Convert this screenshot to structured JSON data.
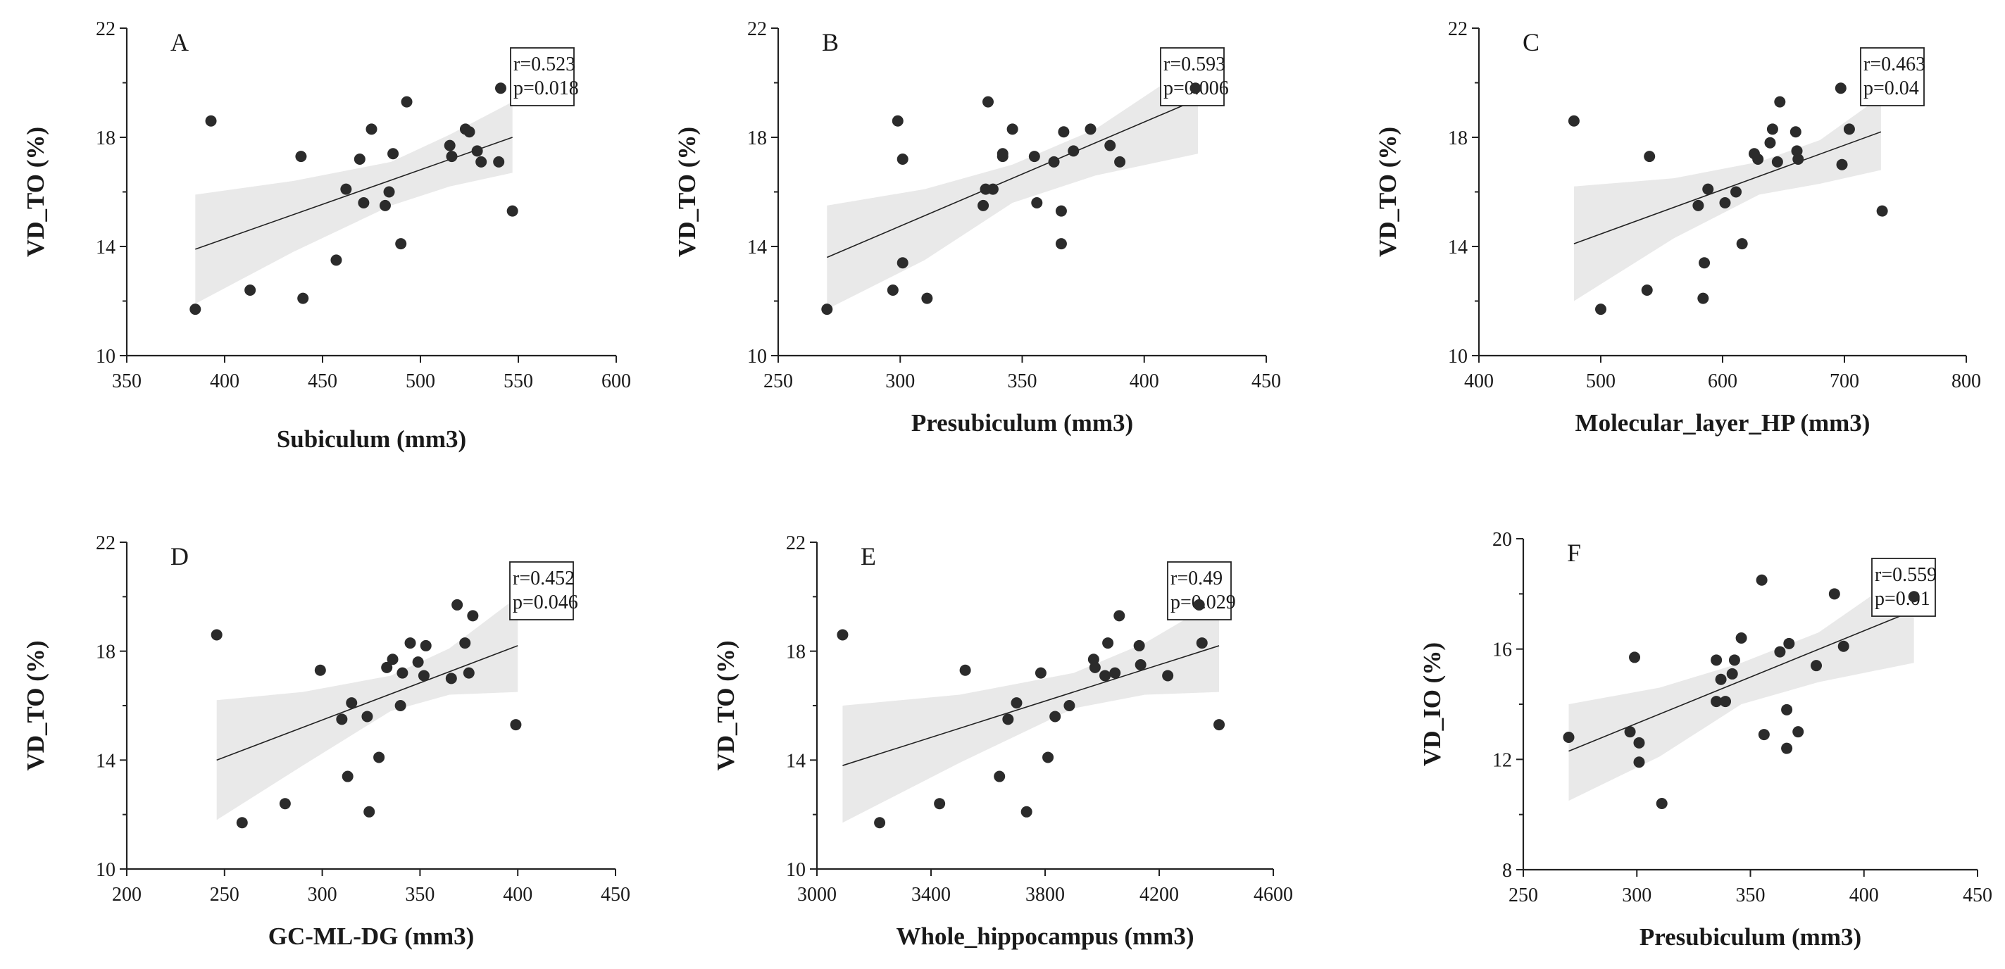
{
  "chart_data": [
    {
      "type": "scatter",
      "panel_label": "A",
      "xlabel": "Subiculum (mm3)",
      "ylabel": "VD_TO (%)",
      "xlim": [
        350,
        600
      ],
      "ylim": [
        10,
        22
      ],
      "xticks": [
        "350",
        "400",
        "450",
        "500",
        "550",
        "600"
      ],
      "yticks": [
        "10",
        "14",
        "18",
        "22"
      ],
      "stats": [
        "r=0.523",
        "p=0.018"
      ],
      "fit": {
        "x": [
          385,
          547
        ],
        "y": [
          13.9,
          18.0
        ]
      },
      "ci": {
        "x": [
          385,
          435,
          485,
          515,
          547
        ],
        "upper": [
          15.9,
          16.4,
          17.1,
          18.1,
          19.3
        ],
        "lower": [
          11.9,
          13.8,
          15.5,
          16.2,
          16.7
        ]
      },
      "points": [
        {
          "x": 385,
          "y": 11.7
        },
        {
          "x": 393,
          "y": 18.6
        },
        {
          "x": 413,
          "y": 12.4
        },
        {
          "x": 439,
          "y": 17.3
        },
        {
          "x": 440,
          "y": 12.1
        },
        {
          "x": 457,
          "y": 13.5
        },
        {
          "x": 462,
          "y": 16.1
        },
        {
          "x": 469,
          "y": 17.2
        },
        {
          "x": 471,
          "y": 15.6
        },
        {
          "x": 475,
          "y": 18.3
        },
        {
          "x": 482,
          "y": 15.5
        },
        {
          "x": 484,
          "y": 16.0
        },
        {
          "x": 486,
          "y": 17.4
        },
        {
          "x": 490,
          "y": 14.1
        },
        {
          "x": 493,
          "y": 19.3
        },
        {
          "x": 515,
          "y": 17.7
        },
        {
          "x": 516,
          "y": 17.3
        },
        {
          "x": 523,
          "y": 18.3
        },
        {
          "x": 525,
          "y": 18.2
        },
        {
          "x": 529,
          "y": 17.5
        },
        {
          "x": 531,
          "y": 17.1
        },
        {
          "x": 540,
          "y": 17.1
        },
        {
          "x": 541,
          "y": 19.8
        },
        {
          "x": 547,
          "y": 15.3
        }
      ]
    },
    {
      "type": "scatter",
      "panel_label": "B",
      "xlabel": "Presubiculum (mm3)",
      "ylabel": "VD_TO (%)",
      "xlim": [
        250,
        450
      ],
      "ylim": [
        10,
        22
      ],
      "xticks": [
        "250",
        "300",
        "350",
        "400",
        "450"
      ],
      "yticks": [
        "10",
        "14",
        "18",
        "22"
      ],
      "stats": [
        "r=0.593",
        "p=0.006"
      ],
      "fit": {
        "x": [
          270,
          422
        ],
        "y": [
          13.6,
          19.4
        ]
      },
      "ci": {
        "x": [
          270,
          310,
          346,
          380,
          422
        ],
        "upper": [
          15.5,
          16.1,
          17.0,
          18.3,
          20.8
        ],
        "lower": [
          11.7,
          13.5,
          15.6,
          16.6,
          17.4
        ]
      },
      "points": [
        {
          "x": 270,
          "y": 11.7
        },
        {
          "x": 297,
          "y": 12.4
        },
        {
          "x": 299,
          "y": 18.6
        },
        {
          "x": 301,
          "y": 17.2
        },
        {
          "x": 301,
          "y": 13.4
        },
        {
          "x": 311,
          "y": 12.1
        },
        {
          "x": 334,
          "y": 15.5
        },
        {
          "x": 335,
          "y": 16.1
        },
        {
          "x": 336,
          "y": 19.3
        },
        {
          "x": 338,
          "y": 16.1
        },
        {
          "x": 342,
          "y": 17.3
        },
        {
          "x": 342,
          "y": 17.4
        },
        {
          "x": 346,
          "y": 18.3
        },
        {
          "x": 356,
          "y": 15.6
        },
        {
          "x": 355,
          "y": 17.3
        },
        {
          "x": 363,
          "y": 17.1
        },
        {
          "x": 366,
          "y": 15.3
        },
        {
          "x": 366,
          "y": 14.1
        },
        {
          "x": 367,
          "y": 18.2
        },
        {
          "x": 371,
          "y": 17.5
        },
        {
          "x": 378,
          "y": 18.3
        },
        {
          "x": 386,
          "y": 17.7
        },
        {
          "x": 390,
          "y": 17.1
        },
        {
          "x": 421,
          "y": 19.8
        }
      ]
    },
    {
      "type": "scatter",
      "panel_label": "C",
      "xlabel": "Molecular_layer_HP (mm3)",
      "ylabel": "VD_TO (%)",
      "xlim": [
        400,
        800
      ],
      "ylim": [
        10,
        22
      ],
      "xticks": [
        "400",
        "500",
        "600",
        "700",
        "800"
      ],
      "yticks": [
        "10",
        "14",
        "18",
        "22"
      ],
      "stats": [
        "r=0.463",
        "p=0.04"
      ],
      "fit": {
        "x": [
          478,
          730
        ],
        "y": [
          14.1,
          18.2
        ]
      },
      "ci": {
        "x": [
          478,
          560,
          630,
          680,
          730
        ],
        "upper": [
          16.2,
          16.5,
          17.1,
          17.9,
          19.5
        ],
        "lower": [
          12.0,
          14.3,
          15.9,
          16.3,
          16.8
        ]
      },
      "points": [
        {
          "x": 478,
          "y": 18.6
        },
        {
          "x": 500,
          "y": 11.7
        },
        {
          "x": 538,
          "y": 12.4
        },
        {
          "x": 540,
          "y": 17.3
        },
        {
          "x": 580,
          "y": 15.5
        },
        {
          "x": 584,
          "y": 12.1
        },
        {
          "x": 585,
          "y": 13.4
        },
        {
          "x": 588,
          "y": 16.1
        },
        {
          "x": 602,
          "y": 15.6
        },
        {
          "x": 611,
          "y": 16.0
        },
        {
          "x": 616,
          "y": 14.1
        },
        {
          "x": 626,
          "y": 17.4
        },
        {
          "x": 629,
          "y": 17.2
        },
        {
          "x": 639,
          "y": 17.8
        },
        {
          "x": 641,
          "y": 18.3
        },
        {
          "x": 645,
          "y": 17.1
        },
        {
          "x": 647,
          "y": 19.3
        },
        {
          "x": 660,
          "y": 18.2
        },
        {
          "x": 661,
          "y": 17.5
        },
        {
          "x": 662,
          "y": 17.2
        },
        {
          "x": 697,
          "y": 19.8
        },
        {
          "x": 698,
          "y": 17.0
        },
        {
          "x": 704,
          "y": 18.3
        },
        {
          "x": 731,
          "y": 15.3
        }
      ]
    },
    {
      "type": "scatter",
      "panel_label": "D",
      "xlabel": "GC-ML-DG (mm3)",
      "ylabel": "VD_TO (%)",
      "xlim": [
        200,
        450
      ],
      "ylim": [
        10,
        22
      ],
      "xticks": [
        "200",
        "250",
        "300",
        "350",
        "400",
        "450"
      ],
      "yticks": [
        "10",
        "14",
        "18",
        "22"
      ],
      "stats": [
        "r=0.452",
        "p=0.046"
      ],
      "fit": {
        "x": [
          246,
          400
        ],
        "y": [
          14.0,
          18.2
        ]
      },
      "ci": {
        "x": [
          246,
          290,
          335,
          365,
          400
        ],
        "upper": [
          16.2,
          16.5,
          17.1,
          18.1,
          20.0
        ],
        "lower": [
          11.8,
          13.8,
          15.8,
          16.4,
          16.5
        ]
      },
      "points": [
        {
          "x": 246,
          "y": 18.6
        },
        {
          "x": 259,
          "y": 11.7
        },
        {
          "x": 281,
          "y": 12.4
        },
        {
          "x": 299,
          "y": 17.3
        },
        {
          "x": 310,
          "y": 15.5
        },
        {
          "x": 313,
          "y": 13.4
        },
        {
          "x": 315,
          "y": 16.1
        },
        {
          "x": 323,
          "y": 15.6
        },
        {
          "x": 324,
          "y": 12.1
        },
        {
          "x": 329,
          "y": 14.1
        },
        {
          "x": 333,
          "y": 17.4
        },
        {
          "x": 336,
          "y": 17.7
        },
        {
          "x": 340,
          "y": 16.0
        },
        {
          "x": 341,
          "y": 17.2
        },
        {
          "x": 345,
          "y": 18.3
        },
        {
          "x": 349,
          "y": 17.6
        },
        {
          "x": 352,
          "y": 17.1
        },
        {
          "x": 353,
          "y": 18.2
        },
        {
          "x": 366,
          "y": 17.0
        },
        {
          "x": 369,
          "y": 19.7
        },
        {
          "x": 373,
          "y": 18.3
        },
        {
          "x": 375,
          "y": 17.2
        },
        {
          "x": 377,
          "y": 19.3
        },
        {
          "x": 399,
          "y": 15.3
        }
      ]
    },
    {
      "type": "scatter",
      "panel_label": "E",
      "xlabel": "Whole_hippocampus (mm3)",
      "ylabel": "VD_TO (%)",
      "xlim": [
        3000,
        4600
      ],
      "ylim": [
        10,
        22
      ],
      "xticks": [
        "3000",
        "3400",
        "3800",
        "4200",
        "4600"
      ],
      "yticks": [
        "10",
        "14",
        "18",
        "22"
      ],
      "stats": [
        "r=0.49",
        "p=0.029"
      ],
      "fit": {
        "x": [
          3090,
          4410
        ],
        "y": [
          13.8,
          18.2
        ]
      },
      "ci": {
        "x": [
          3090,
          3500,
          3900,
          4150,
          4410
        ],
        "upper": [
          16.0,
          16.4,
          17.2,
          18.3,
          19.9
        ],
        "lower": [
          11.7,
          13.9,
          15.9,
          16.4,
          16.5
        ]
      },
      "points": [
        {
          "x": 3090,
          "y": 18.6
        },
        {
          "x": 3220,
          "y": 11.7
        },
        {
          "x": 3430,
          "y": 12.4
        },
        {
          "x": 3520,
          "y": 17.3
        },
        {
          "x": 3640,
          "y": 13.4
        },
        {
          "x": 3670,
          "y": 15.5
        },
        {
          "x": 3700,
          "y": 16.1
        },
        {
          "x": 3735,
          "y": 12.1
        },
        {
          "x": 3785,
          "y": 17.2
        },
        {
          "x": 3810,
          "y": 14.1
        },
        {
          "x": 3835,
          "y": 15.6
        },
        {
          "x": 3885,
          "y": 16.0
        },
        {
          "x": 3970,
          "y": 17.7
        },
        {
          "x": 3975,
          "y": 17.4
        },
        {
          "x": 4010,
          "y": 17.1
        },
        {
          "x": 4020,
          "y": 18.3
        },
        {
          "x": 4045,
          "y": 17.2
        },
        {
          "x": 4060,
          "y": 19.3
        },
        {
          "x": 4130,
          "y": 18.2
        },
        {
          "x": 4135,
          "y": 17.5
        },
        {
          "x": 4230,
          "y": 17.1
        },
        {
          "x": 4340,
          "y": 19.7
        },
        {
          "x": 4350,
          "y": 18.3
        },
        {
          "x": 4410,
          "y": 15.3
        }
      ]
    },
    {
      "type": "scatter",
      "panel_label": "F",
      "xlabel": "Presubiculum (mm3)",
      "ylabel": "VD_IO (%)",
      "xlim": [
        250,
        450
      ],
      "ylim": [
        8,
        20
      ],
      "xticks": [
        "250",
        "300",
        "350",
        "400",
        "450"
      ],
      "yticks": [
        "8",
        "12",
        "16",
        "20"
      ],
      "stats": [
        "r=0.559",
        "p=0.01"
      ],
      "fit": {
        "x": [
          270,
          422
        ],
        "y": [
          12.3,
          17.4
        ]
      },
      "ci": {
        "x": [
          270,
          310,
          346,
          380,
          422
        ],
        "upper": [
          14.0,
          14.6,
          15.5,
          16.6,
          19.0
        ],
        "lower": [
          10.5,
          12.1,
          14.0,
          14.8,
          15.5
        ]
      },
      "points": [
        {
          "x": 270,
          "y": 12.8
        },
        {
          "x": 297,
          "y": 13.0
        },
        {
          "x": 299,
          "y": 15.7
        },
        {
          "x": 301,
          "y": 12.6
        },
        {
          "x": 301,
          "y": 11.9
        },
        {
          "x": 311,
          "y": 10.4
        },
        {
          "x": 335,
          "y": 14.1
        },
        {
          "x": 335,
          "y": 15.6
        },
        {
          "x": 337,
          "y": 14.9
        },
        {
          "x": 339,
          "y": 14.1
        },
        {
          "x": 342,
          "y": 15.1
        },
        {
          "x": 343,
          "y": 15.6
        },
        {
          "x": 346,
          "y": 16.4
        },
        {
          "x": 355,
          "y": 18.5
        },
        {
          "x": 356,
          "y": 12.9
        },
        {
          "x": 363,
          "y": 15.9
        },
        {
          "x": 366,
          "y": 13.8
        },
        {
          "x": 366,
          "y": 12.4
        },
        {
          "x": 367,
          "y": 16.2
        },
        {
          "x": 371,
          "y": 13.0
        },
        {
          "x": 379,
          "y": 15.4
        },
        {
          "x": 387,
          "y": 18.0
        },
        {
          "x": 391,
          "y": 16.1
        },
        {
          "x": 422,
          "y": 17.9
        }
      ]
    }
  ]
}
